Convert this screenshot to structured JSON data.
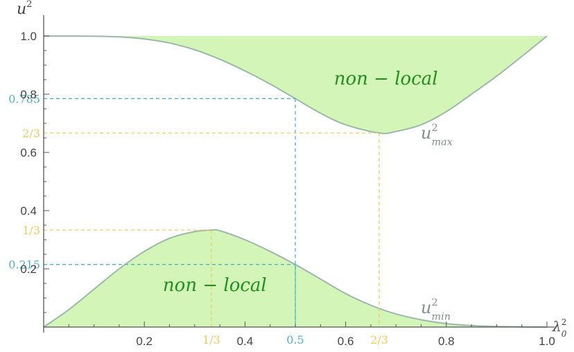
{
  "chart_data": {
    "type": "area",
    "xlabel": "λ",
    "xlabel_sup": "2",
    "xlabel_sub": "0",
    "ylabel": "u",
    "ylabel_sup": "2",
    "xlim": [
      0,
      1.0
    ],
    "ylim": [
      0,
      1.0
    ],
    "x_ticks": [
      {
        "value": 0.2,
        "label": "0.2"
      },
      {
        "value": 0.4,
        "label": "0.4"
      },
      {
        "value": 0.6,
        "label": "0.6"
      },
      {
        "value": 0.8,
        "label": "0.8"
      },
      {
        "value": 1.0,
        "label": "1.0"
      }
    ],
    "y_ticks": [
      {
        "value": 0.2,
        "label": "0.2"
      },
      {
        "value": 0.4,
        "label": "0.4"
      },
      {
        "value": 0.6,
        "label": "0.6"
      },
      {
        "value": 0.8,
        "label": "0.8"
      },
      {
        "value": 1.0,
        "label": "1.0"
      }
    ],
    "series": [
      {
        "label_base": "u",
        "label_sup": "2",
        "label_sub": "max",
        "x": [
          0,
          0.05,
          0.1,
          0.15,
          0.2,
          0.25,
          0.3,
          0.35,
          0.4,
          0.45,
          0.5,
          0.55,
          0.6,
          0.6667,
          0.7,
          0.75,
          0.8,
          0.85,
          0.9,
          0.95,
          1.0
        ],
        "y": [
          1.0,
          1.0,
          0.9995,
          0.997,
          0.99,
          0.976,
          0.953,
          0.92,
          0.88,
          0.835,
          0.785,
          0.735,
          0.695,
          0.6667,
          0.672,
          0.695,
          0.74,
          0.8,
          0.862,
          0.93,
          1.0
        ]
      },
      {
        "label_base": "u",
        "label_sup": "2",
        "label_sub": "min",
        "x": [
          0,
          0.05,
          0.1,
          0.15,
          0.2,
          0.25,
          0.3,
          0.3333,
          0.35,
          0.4,
          0.45,
          0.5,
          0.55,
          0.6,
          0.65,
          0.7,
          0.75,
          0.8,
          0.85,
          0.9,
          0.95,
          1.0
        ],
        "y": [
          0,
          0.06,
          0.13,
          0.2,
          0.26,
          0.305,
          0.328,
          0.3333,
          0.331,
          0.3,
          0.26,
          0.215,
          0.165,
          0.115,
          0.075,
          0.045,
          0.025,
          0.012,
          0.005,
          0.002,
          0.0005,
          0
        ]
      }
    ],
    "regions": [
      {
        "label": "non − local",
        "x": 0.68,
        "y": 0.855
      },
      {
        "label": "non − local",
        "x": 0.34,
        "y": 0.145
      }
    ],
    "ref_lines": [
      {
        "x": 0.5,
        "y": 0.785,
        "x_label": "0.5",
        "y_label": "0.785",
        "color": "#4fb3c4",
        "curve": "top"
      },
      {
        "x": 0.5,
        "y": 0.215,
        "x_label": "",
        "y_label": "0.215",
        "color": "#4fb3c4",
        "curve": "bottom"
      },
      {
        "x": 0.6667,
        "y": 0.6667,
        "x_label": "2/3",
        "y_label": "2/3",
        "color": "#f4c95d",
        "curve": "top"
      },
      {
        "x": 0.3333,
        "y": 0.3333,
        "x_label": "1/3",
        "y_label": "1/3",
        "color": "#f4c95d",
        "curve": "bottom"
      }
    ],
    "colors": {
      "fill": "#d4f5b8",
      "curve": "#9bb8a8",
      "region_text": "#1f8f1f",
      "axis": "#555555"
    }
  }
}
